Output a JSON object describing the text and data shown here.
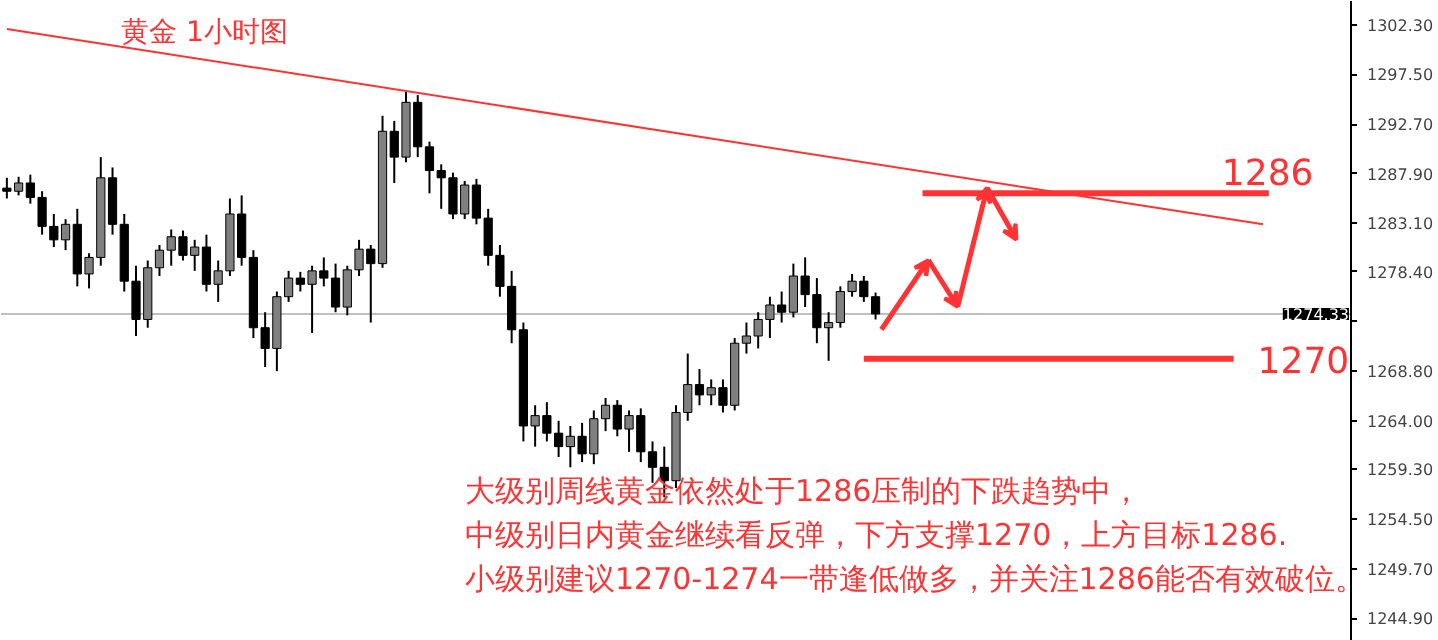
{
  "chart_data": {
    "type": "candlestick",
    "title": "黄金 1小时图",
    "annotations": [
      "大级别周线黄金依然处于1286压制的下跌趋势中，",
      "中级别日内黄金继续看反弹，下方支撑1270，上方目标1286.",
      "小级别建议1270-1274一带逢低做多，并关注1286能否有效破位。"
    ],
    "categories": [
      null,
      null,
      null,
      null,
      null,
      null,
      null,
      null,
      null,
      null,
      null,
      null,
      null,
      null,
      null,
      null,
      null,
      null,
      null,
      null,
      null,
      null,
      null,
      null,
      null,
      null,
      null,
      null,
      null,
      null,
      null,
      null,
      null,
      null,
      null,
      null,
      null,
      null,
      null,
      null,
      null,
      null,
      null,
      null,
      null,
      null,
      null,
      null,
      null,
      null,
      null,
      null,
      null,
      null,
      null,
      null,
      null,
      null,
      null,
      null,
      null,
      null,
      null,
      null,
      null,
      null,
      null,
      null,
      null,
      null,
      null,
      null,
      null,
      null,
      null,
      null,
      null,
      null,
      null,
      null,
      null,
      null,
      null,
      null,
      null,
      null,
      null,
      null,
      null,
      null,
      null,
      null,
      null,
      null,
      null,
      null,
      null,
      null,
      null,
      null,
      null,
      null,
      null,
      null,
      null,
      null,
      null,
      null,
      null,
      null,
      null,
      null,
      null,
      null,
      null
    ],
    "ohlc": [
      [
        1286.5,
        1287.5,
        1285.5,
        1286.2
      ],
      [
        1286.2,
        1287.6,
        1285.8,
        1287.0
      ],
      [
        1287.0,
        1287.8,
        1285.0,
        1285.6
      ],
      [
        1285.6,
        1286.2,
        1282.0,
        1282.8
      ],
      [
        1282.8,
        1284.0,
        1280.8,
        1281.5
      ],
      [
        1281.5,
        1283.5,
        1280.5,
        1283.0
      ],
      [
        1283.0,
        1284.5,
        1277.0,
        1278.2
      ],
      [
        1278.2,
        1280.2,
        1276.8,
        1279.8
      ],
      [
        1279.8,
        1289.5,
        1279.0,
        1287.5
      ],
      [
        1287.5,
        1288.5,
        1282.0,
        1283.0
      ],
      [
        1283.0,
        1284.0,
        1276.5,
        1277.5
      ],
      [
        1277.5,
        1279.0,
        1272.2,
        1273.8
      ],
      [
        1273.8,
        1279.5,
        1273.0,
        1278.8
      ],
      [
        1278.8,
        1281.0,
        1278.0,
        1280.5
      ],
      [
        1280.5,
        1282.5,
        1279.0,
        1281.8
      ],
      [
        1281.8,
        1282.4,
        1279.5,
        1280.0
      ],
      [
        1280.0,
        1281.5,
        1278.5,
        1280.8
      ],
      [
        1280.8,
        1282.0,
        1276.5,
        1277.2
      ],
      [
        1277.2,
        1279.5,
        1275.5,
        1278.5
      ],
      [
        1278.5,
        1285.5,
        1278.0,
        1284.0
      ],
      [
        1284.0,
        1285.8,
        1279.0,
        1279.8
      ],
      [
        1279.8,
        1280.5,
        1272.0,
        1273.0
      ],
      [
        1273.0,
        1274.5,
        1269.2,
        1271.0
      ],
      [
        1271.0,
        1276.5,
        1268.8,
        1276.0
      ],
      [
        1276.0,
        1278.5,
        1275.5,
        1277.8
      ],
      [
        1277.8,
        1278.4,
        1276.5,
        1277.2
      ],
      [
        1277.2,
        1279.0,
        1272.5,
        1278.5
      ],
      [
        1278.5,
        1279.8,
        1277.0,
        1277.8
      ],
      [
        1277.8,
        1279.2,
        1274.5,
        1275.0
      ],
      [
        1275.0,
        1279.0,
        1274.2,
        1278.6
      ],
      [
        1278.6,
        1281.5,
        1278.0,
        1280.6
      ],
      [
        1280.6,
        1281.0,
        1273.5,
        1279.2
      ],
      [
        1279.2,
        1293.5,
        1278.8,
        1292.0
      ],
      [
        1292.0,
        1293.0,
        1287.0,
        1289.5
      ],
      [
        1289.5,
        1295.8,
        1289.0,
        1294.8
      ],
      [
        1294.8,
        1295.5,
        1289.5,
        1290.5
      ],
      [
        1290.5,
        1291.0,
        1286.0,
        1288.2
      ],
      [
        1288.2,
        1288.8,
        1284.5,
        1287.5
      ],
      [
        1287.5,
        1288.0,
        1283.5,
        1284.0
      ],
      [
        1284.0,
        1287.2,
        1283.5,
        1286.8
      ],
      [
        1286.8,
        1287.4,
        1283.0,
        1283.6
      ],
      [
        1283.6,
        1284.5,
        1279.0,
        1280.0
      ],
      [
        1280.0,
        1281.0,
        1276.0,
        1277.0
      ],
      [
        1277.0,
        1278.5,
        1271.5,
        1272.8
      ],
      [
        1272.8,
        1273.5,
        1262.0,
        1263.5
      ],
      [
        1263.5,
        1265.5,
        1261.5,
        1264.5
      ],
      [
        1264.5,
        1265.8,
        1262.0,
        1262.8
      ],
      [
        1262.8,
        1264.0,
        1260.5,
        1261.5
      ],
      [
        1261.5,
        1263.5,
        1259.5,
        1262.5
      ],
      [
        1262.5,
        1263.8,
        1260.0,
        1260.8
      ],
      [
        1260.8,
        1265.0,
        1259.8,
        1264.2
      ],
      [
        1264.2,
        1266.2,
        1263.0,
        1265.5
      ],
      [
        1265.5,
        1266.0,
        1262.5,
        1263.2
      ],
      [
        1263.2,
        1265.0,
        1261.0,
        1264.5
      ],
      [
        1264.5,
        1265.2,
        1260.0,
        1261.0
      ],
      [
        1261.0,
        1262.0,
        1258.0,
        1259.5
      ],
      [
        1259.5,
        1261.5,
        1256.6,
        1258.2
      ],
      [
        1258.2,
        1265.5,
        1257.5,
        1264.8
      ],
      [
        1264.8,
        1270.5,
        1264.0,
        1267.5
      ],
      [
        1267.5,
        1269.0,
        1265.5,
        1266.5
      ],
      [
        1266.5,
        1268.0,
        1265.5,
        1267.2
      ],
      [
        1267.2,
        1268.0,
        1264.8,
        1265.5
      ],
      [
        1265.5,
        1272.0,
        1265.0,
        1271.5
      ],
      [
        1271.5,
        1273.5,
        1270.5,
        1272.2
      ],
      [
        1272.2,
        1274.5,
        1271.0,
        1273.8
      ],
      [
        1273.8,
        1276.0,
        1272.0,
        1275.2
      ],
      [
        1275.2,
        1276.5,
        1273.5,
        1274.5
      ],
      [
        1274.5,
        1279.2,
        1274.0,
        1278.0
      ],
      [
        1278.0,
        1279.8,
        1275.0,
        1276.2
      ],
      [
        1276.2,
        1277.8,
        1271.5,
        1273.0
      ],
      [
        1273.0,
        1274.5,
        1269.8,
        1273.5
      ],
      [
        1273.5,
        1277.0,
        1273.0,
        1276.5
      ],
      [
        1276.5,
        1278.2,
        1276.0,
        1277.5
      ],
      [
        1277.5,
        1278.0,
        1275.5,
        1276.0
      ],
      [
        1276.0,
        1276.4,
        1273.8,
        1274.33
      ],
      null,
      null,
      null,
      null,
      null,
      null,
      null,
      null,
      null,
      null,
      null,
      null,
      null,
      null,
      null,
      null,
      null,
      null,
      null,
      null,
      null,
      null,
      null,
      null,
      null,
      null,
      null,
      null,
      null,
      null,
      null,
      null,
      null,
      null,
      null,
      null,
      null,
      null,
      null,
      null
    ],
    "series": [
      {
        "type": "line",
        "color": "#ff3333",
        "values": [
          1301.9,
          null,
          null,
          null,
          null,
          null,
          null,
          null,
          null,
          null,
          null,
          null,
          null,
          null,
          null,
          null,
          null,
          null,
          null,
          null,
          null,
          null,
          null,
          null,
          null,
          null,
          null,
          null,
          null,
          null,
          null,
          null,
          null,
          null,
          null,
          null,
          null,
          null,
          null,
          null,
          null,
          null,
          null,
          null,
          null,
          null,
          null,
          null,
          null,
          null,
          null,
          null,
          null,
          null,
          null,
          null,
          null,
          null,
          null,
          null,
          null,
          null,
          null,
          null,
          null,
          null,
          null,
          null,
          null,
          null,
          null,
          null,
          null,
          null,
          null,
          null,
          null,
          null,
          null,
          null,
          null,
          null,
          null,
          null,
          null,
          null,
          null,
          null,
          null,
          null,
          null,
          null,
          null,
          null,
          null,
          null,
          null,
          null,
          null,
          null,
          null,
          null,
          null,
          null,
          null,
          null,
          null,
          1283.0,
          null,
          null,
          null,
          null,
          null,
          null,
          null
        ]
      }
    ],
    "ref_lines": [
      {
        "axis": "y",
        "value": 1274.33,
        "label": "1274.33",
        "color": "#c0c0c0"
      },
      {
        "axis": "y",
        "value": 1286,
        "label": "1286",
        "color": "#ff3333"
      },
      {
        "axis": "y",
        "value": 1270,
        "label": "1270",
        "color": "#ff3333"
      }
    ],
    "ylim": [
      1242.7,
      1304.6
    ],
    "yticks": [
      {
        "value": 1302.3,
        "label": "1302.30"
      },
      {
        "value": 1297.5,
        "label": "1297.50"
      },
      {
        "value": 1292.7,
        "label": "1292.70"
      },
      {
        "value": 1287.9,
        "label": "1287.90"
      },
      {
        "value": 1283.1,
        "label": "1283.10"
      },
      {
        "value": 1278.4,
        "label": "1278.40"
      },
      {
        "value": 1273.6,
        "label": null
      },
      {
        "value": 1268.8,
        "label": "1268.80"
      },
      {
        "value": 1264.0,
        "label": "1264.00"
      },
      {
        "value": 1259.3,
        "label": "1259.30"
      },
      {
        "value": 1254.5,
        "label": "1254.50"
      },
      {
        "value": 1249.7,
        "label": "1249.70"
      },
      {
        "value": 1244.9,
        "label": "1244.90"
      }
    ],
    "tick_labels": "y",
    "grid": false
  }
}
